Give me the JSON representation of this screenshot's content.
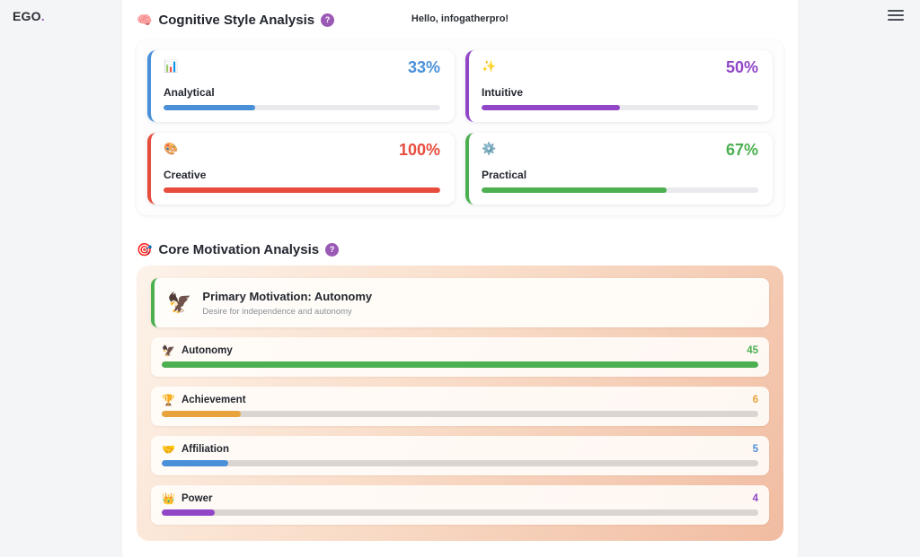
{
  "page": {
    "logo_text": "EGO",
    "logo_dot": ".",
    "greeting": "Hello, infogatherpro!"
  },
  "theme": {
    "help_badge_color": "#9b59b6"
  },
  "cognitive_section": {
    "icon": "🧠",
    "title": "Cognitive Style Analysis",
    "help_label": "?",
    "cards": [
      {
        "icon": "📊",
        "label": "Analytical",
        "value": "33%",
        "percent": 33,
        "color": "#4a90d9"
      },
      {
        "icon": "✨",
        "label": "Intuitive",
        "value": "50%",
        "percent": 50,
        "color": "#9146c8"
      },
      {
        "icon": "🎨",
        "label": "Creative",
        "value": "100%",
        "percent": 100,
        "color": "#e74c3c"
      },
      {
        "icon": "⚙️",
        "label": "Practical",
        "value": "67%",
        "percent": 67,
        "color": "#4caf50"
      }
    ]
  },
  "motivation_section": {
    "icon": "🎯",
    "title": "Core Motivation Analysis",
    "help_label": "?",
    "primary": {
      "icon": "🦅",
      "title": "Primary Motivation: Autonomy",
      "subtitle": "Desire for independence and autonomy",
      "color": "#4caf50"
    },
    "rows": [
      {
        "icon": "🦅",
        "label": "Autonomy",
        "value": "45",
        "percent": 100,
        "color": "#4caf50"
      },
      {
        "icon": "🏆",
        "label": "Achievement",
        "value": "6",
        "percent": 13.3,
        "color": "#e8a33d"
      },
      {
        "icon": "🤝",
        "label": "Affiliation",
        "value": "5",
        "percent": 11.1,
        "color": "#4a90d9"
      },
      {
        "icon": "👑",
        "label": "Power",
        "value": "4",
        "percent": 8.9,
        "color": "#9146c8"
      }
    ]
  }
}
